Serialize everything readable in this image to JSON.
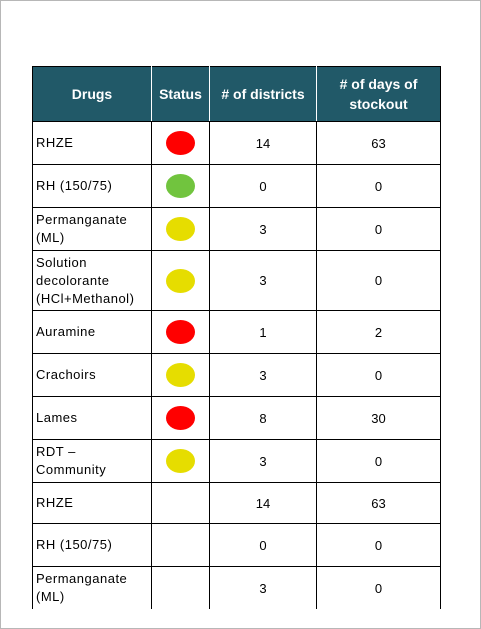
{
  "table": {
    "headers": {
      "drugs": "Drugs",
      "status": "Status",
      "districts": "# of districts",
      "days": "# of days of stockout"
    },
    "status_colors": {
      "red": "#ff0000",
      "green": "#71c43e",
      "yellow": "#e6dd00"
    },
    "rows": [
      {
        "drug": "RHZE",
        "status": "red",
        "districts": "14",
        "days": "63"
      },
      {
        "drug": "RH (150/75)",
        "status": "green",
        "districts": "0",
        "days": "0"
      },
      {
        "drug": "Permanganate (ML)",
        "status": "yellow",
        "districts": "3",
        "days": "0"
      },
      {
        "drug": "Solution decolorante (HCl+Methanol)",
        "status": "yellow",
        "districts": "3",
        "days": "0"
      },
      {
        "drug": "Auramine",
        "status": "red",
        "districts": "1",
        "days": "2"
      },
      {
        "drug": "Crachoirs",
        "status": "yellow",
        "districts": "3",
        "days": "0"
      },
      {
        "drug": "Lames",
        "status": "red",
        "districts": "8",
        "days": "30"
      },
      {
        "drug": "RDT – Community",
        "status": "yellow",
        "districts": "3",
        "days": "0"
      },
      {
        "drug": "RHZE",
        "status": "",
        "districts": "14",
        "days": "63"
      },
      {
        "drug": "RH (150/75)",
        "status": "",
        "districts": "0",
        "days": "0"
      },
      {
        "drug": "Permanganate (ML)",
        "status": "",
        "districts": "3",
        "days": "0"
      }
    ]
  }
}
